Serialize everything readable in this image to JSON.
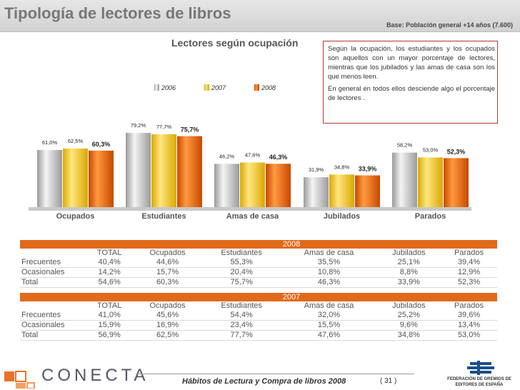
{
  "header": {
    "title": "Tipología de lectores de libros",
    "base": "Base: Población general +14 años (7.600)"
  },
  "note": {
    "p1": "Según la ocupación, los estudiantes y los ocupados son aquellos con un mayor porcentaje de lectores, mientras que los jubilados y las amas de casa son los que menos leen.",
    "p2": "En general en todos ellos desciende algo el porcentaje de lectores ."
  },
  "chart_data": {
    "type": "bar",
    "title": "Lectores según ocupación",
    "categories": [
      "Ocupados",
      "Estudiantes",
      "Amas de casa",
      "Jubilados",
      "Parados"
    ],
    "series": [
      {
        "name": "2006",
        "color": "#bdbdbd",
        "values": [
          61.0,
          79.2,
          46.2,
          31.9,
          58.2
        ],
        "labels": [
          "61,0%",
          "79,2%",
          "46,2%",
          "31,9%",
          "58,2%"
        ]
      },
      {
        "name": "2007",
        "color": "#f0c400",
        "values": [
          62.5,
          77.7,
          47.6,
          34.8,
          53.0
        ],
        "labels": [
          "62,5%",
          "77,7%",
          "47,6%",
          "34,8%",
          "53,0%"
        ]
      },
      {
        "name": "2008",
        "color": "#e05a00",
        "values": [
          60.3,
          75.7,
          46.3,
          33.9,
          52.3
        ],
        "labels": [
          "60,3%",
          "75,7%",
          "46,3%",
          "33,9%",
          "52,3%"
        ]
      }
    ],
    "ylim": [
      0,
      100
    ],
    "legend": "top-center"
  },
  "table2008": {
    "year": "2008",
    "headers": [
      "TOTAL",
      "Ocupados",
      "Estudiantes",
      "Amas de casa",
      "Jubilados",
      "Parados"
    ],
    "rows": [
      {
        "label": "Frecuentes",
        "values": [
          "40,4%",
          "44,6%",
          "55,3%",
          "35,5%",
          "25,1%",
          "39,4%"
        ]
      },
      {
        "label": "Ocasionales",
        "values": [
          "14,2%",
          "15,7%",
          "20,4%",
          "10,8%",
          "8,8%",
          "12,9%"
        ]
      },
      {
        "label": "Total",
        "values": [
          "54,6%",
          "60,3%",
          "75,7%",
          "46,3%",
          "33,9%",
          "52,3%"
        ]
      }
    ]
  },
  "table2007": {
    "year": "2007",
    "headers": [
      "TOTAL",
      "Ocupados",
      "Estudiantes",
      "Amas de casa",
      "Jubilados",
      "Parados"
    ],
    "rows": [
      {
        "label": "Frecuentes",
        "values": [
          "41,0%",
          "45,6%",
          "54,4%",
          "32,0%",
          "25,2%",
          "39,6%"
        ]
      },
      {
        "label": "Ocasionales",
        "values": [
          "15,9%",
          "16,9%",
          "23,4%",
          "15,5%",
          "9,6%",
          "13,4%"
        ]
      },
      {
        "label": "Total",
        "values": [
          "56,9%",
          "62,5%",
          "77,7%",
          "47,6%",
          "34,8%",
          "53,0%"
        ]
      }
    ]
  },
  "footer": {
    "title": "Hábitos de Lectura y Compra de libros 2008",
    "page": "( 31 )",
    "logo": "CONECTA",
    "federation": "FEDERACIÓN DE GREMIOS DE EDITORES DE ESPAÑA"
  }
}
